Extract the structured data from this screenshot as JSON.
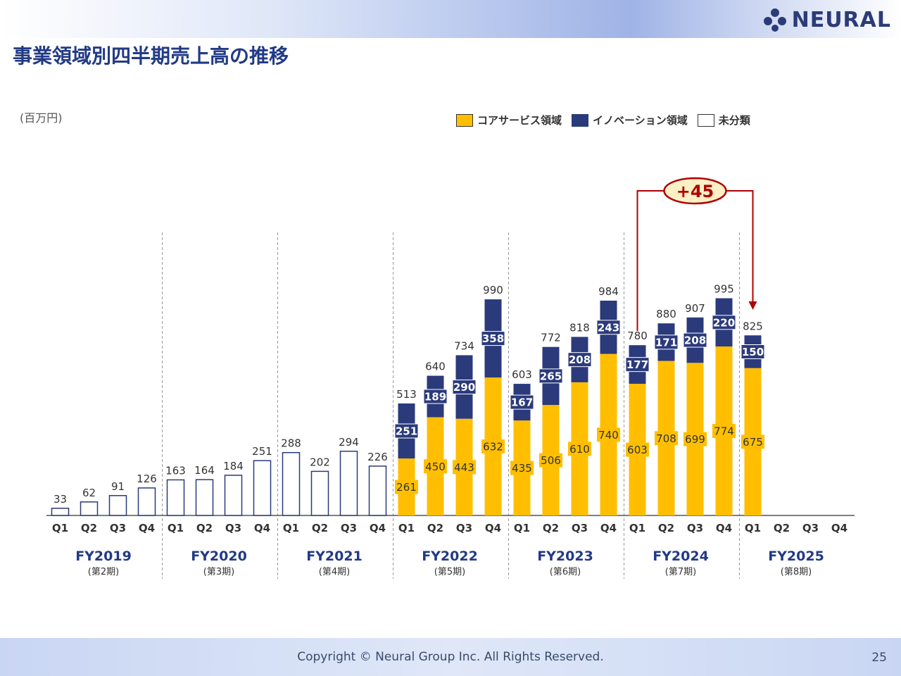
{
  "header": {
    "logo_text": "NEURAL",
    "title": "事業領域別四半期売上高の推移"
  },
  "colors": {
    "core": "#ffbf00",
    "innovation": "#2b3a7b",
    "unclassified": "#ffffff",
    "accent": "#b00000"
  },
  "chart_data": {
    "type": "bar",
    "stacked": true,
    "unit": "(百万円)",
    "legend": [
      "コアサービス領域",
      "イノベーション領域",
      "未分類"
    ],
    "legend_position": "top-right",
    "quarters": [
      "Q1",
      "Q2",
      "Q3",
      "Q4"
    ],
    "years": [
      {
        "fy": "FY2019",
        "period": "(第2期)",
        "quarters": [
          {
            "q": "Q1",
            "unclassified": 33,
            "total": 33
          },
          {
            "q": "Q2",
            "unclassified": 62,
            "total": 62
          },
          {
            "q": "Q3",
            "unclassified": 91,
            "total": 91
          },
          {
            "q": "Q4",
            "unclassified": 126,
            "total": 126
          }
        ]
      },
      {
        "fy": "FY2020",
        "period": "(第3期)",
        "quarters": [
          {
            "q": "Q1",
            "unclassified": 163,
            "total": 163
          },
          {
            "q": "Q2",
            "unclassified": 164,
            "total": 164
          },
          {
            "q": "Q3",
            "unclassified": 184,
            "total": 184
          },
          {
            "q": "Q4",
            "unclassified": 251,
            "total": 251
          }
        ]
      },
      {
        "fy": "FY2021",
        "period": "(第4期)",
        "quarters": [
          {
            "q": "Q1",
            "unclassified": 288,
            "total": 288
          },
          {
            "q": "Q2",
            "unclassified": 202,
            "total": 202
          },
          {
            "q": "Q3",
            "unclassified": 294,
            "total": 294
          },
          {
            "q": "Q4",
            "unclassified": 226,
            "total": 226
          }
        ]
      },
      {
        "fy": "FY2022",
        "period": "(第5期)",
        "quarters": [
          {
            "q": "Q1",
            "core": 261,
            "innovation": 251,
            "total": 513
          },
          {
            "q": "Q2",
            "core": 450,
            "innovation": 189,
            "total": 640
          },
          {
            "q": "Q3",
            "core": 443,
            "innovation": 290,
            "total": 734
          },
          {
            "q": "Q4",
            "core": 632,
            "innovation": 358,
            "total": 990
          }
        ]
      },
      {
        "fy": "FY2023",
        "period": "(第6期)",
        "quarters": [
          {
            "q": "Q1",
            "core": 435,
            "innovation": 167,
            "total": 603
          },
          {
            "q": "Q2",
            "core": 506,
            "innovation": 265,
            "total": 772
          },
          {
            "q": "Q3",
            "core": 610,
            "innovation": 208,
            "total": 818
          },
          {
            "q": "Q4",
            "core": 740,
            "innovation": 243,
            "total": 984
          }
        ]
      },
      {
        "fy": "FY2024",
        "period": "(第7期)",
        "quarters": [
          {
            "q": "Q1",
            "core": 603,
            "innovation": 177,
            "total": 780
          },
          {
            "q": "Q2",
            "core": 708,
            "innovation": 171,
            "total": 880
          },
          {
            "q": "Q3",
            "core": 699,
            "innovation": 208,
            "total": 907
          },
          {
            "q": "Q4",
            "core": 774,
            "innovation": 220,
            "total": 995
          }
        ]
      },
      {
        "fy": "FY2025",
        "period": "(第8期)",
        "quarters": [
          {
            "q": "Q1",
            "core": 675,
            "innovation": 150,
            "total": 825
          },
          {
            "q": "Q2"
          },
          {
            "q": "Q3"
          },
          {
            "q": "Q4"
          }
        ]
      }
    ],
    "annotation": {
      "text": "+45",
      "from": "FY2024 Q1",
      "to": "FY2025 Q1"
    },
    "ylim": [
      0,
      1050
    ],
    "grid": false
  },
  "footer": {
    "copyright": "Copyright © Neural Group Inc. All Rights Reserved.",
    "page_number": "25"
  }
}
